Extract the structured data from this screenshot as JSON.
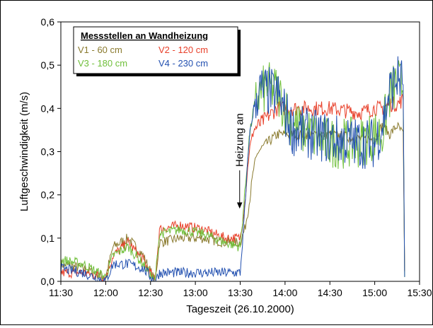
{
  "chart_data": {
    "type": "line",
    "xlabel": "Tageszeit (26.10.2000)",
    "ylabel": "Luftgeschwindigkeit (m/s)",
    "xlim": [
      "11:30",
      "15:30"
    ],
    "ylim": [
      0,
      0.6
    ],
    "x_ticks": [
      "11:30",
      "12:00",
      "12:30",
      "13:00",
      "13:30",
      "14:00",
      "14:30",
      "15:00",
      "15:30"
    ],
    "y_ticks": [
      "0,0",
      "0,1",
      "0,2",
      "0,3",
      "0,4",
      "0,5",
      "0,6"
    ],
    "grid": false,
    "legend": {
      "title": "Messstellen an Wandheizung",
      "placement": "top-left",
      "entries": [
        "V1 -  60 cm",
        "V2 - 120 cm",
        "V3 - 180 cm",
        "V4 - 230 cm"
      ]
    },
    "annotation": {
      "text": "Heizung an",
      "x": "13:32",
      "y": 0.18
    },
    "series": [
      {
        "name": "V1 -  60 cm",
        "color": "#8a7a2e",
        "x": [
          "11:30",
          "11:45",
          "12:00",
          "12:05",
          "12:15",
          "12:25",
          "12:33",
          "12:36",
          "12:50",
          "13:05",
          "13:20",
          "13:30",
          "13:33",
          "13:36",
          "13:39",
          "13:42",
          "13:48",
          "13:55",
          "14:05",
          "14:30",
          "14:50",
          "15:00",
          "15:05",
          "15:10",
          "15:15",
          "15:19",
          "15:20"
        ],
        "values": [
          0.04,
          0.03,
          0.01,
          0.08,
          0.1,
          0.06,
          0.0,
          0.09,
          0.1,
          0.1,
          0.09,
          0.09,
          0.12,
          0.18,
          0.26,
          0.3,
          0.32,
          0.34,
          0.34,
          0.34,
          0.33,
          0.33,
          0.36,
          0.34,
          0.36,
          0.34,
          0.02
        ]
      },
      {
        "name": "V2 - 120 cm",
        "color": "#e8402a",
        "x": [
          "11:30",
          "11:45",
          "12:00",
          "12:05",
          "12:15",
          "12:25",
          "12:33",
          "12:36",
          "12:50",
          "13:05",
          "13:20",
          "13:30",
          "13:33",
          "13:36",
          "13:39",
          "13:42",
          "13:48",
          "13:55",
          "14:05",
          "14:30",
          "14:50",
          "15:00",
          "15:05",
          "15:10",
          "15:15",
          "15:19",
          "15:20"
        ],
        "values": [
          0.02,
          0.02,
          0.01,
          0.06,
          0.09,
          0.05,
          0.0,
          0.12,
          0.13,
          0.12,
          0.1,
          0.1,
          0.18,
          0.3,
          0.35,
          0.36,
          0.38,
          0.4,
          0.4,
          0.4,
          0.39,
          0.4,
          0.4,
          0.41,
          0.41,
          0.42,
          0.03
        ]
      },
      {
        "name": "V3 - 180 cm",
        "color": "#6fbf3a",
        "x": [
          "11:30",
          "11:45",
          "12:00",
          "12:05",
          "12:15",
          "12:25",
          "12:33",
          "12:36",
          "12:50",
          "13:05",
          "13:20",
          "13:30",
          "13:33",
          "13:36",
          "13:39",
          "13:42",
          "13:48",
          "13:55",
          "14:05",
          "14:30",
          "14:50",
          "15:00",
          "15:05",
          "15:10",
          "15:15",
          "15:19",
          "15:20"
        ],
        "values": [
          0.05,
          0.04,
          0.01,
          0.06,
          0.08,
          0.04,
          0.0,
          0.11,
          0.12,
          0.11,
          0.09,
          0.08,
          0.2,
          0.33,
          0.4,
          0.43,
          0.45,
          0.44,
          0.36,
          0.32,
          0.32,
          0.34,
          0.34,
          0.43,
          0.46,
          0.45,
          0.02
        ]
      },
      {
        "name": "V4 - 230 cm",
        "color": "#2250b0",
        "x": [
          "11:30",
          "11:45",
          "12:00",
          "12:05",
          "12:15",
          "12:25",
          "12:33",
          "12:36",
          "12:50",
          "13:05",
          "13:20",
          "13:30",
          "13:33",
          "13:36",
          "13:39",
          "13:42",
          "13:48",
          "13:55",
          "14:05",
          "14:30",
          "14:50",
          "15:00",
          "15:05",
          "15:10",
          "15:15",
          "15:19",
          "15:20"
        ],
        "values": [
          0.03,
          0.02,
          0.0,
          0.04,
          0.04,
          0.03,
          0.0,
          0.02,
          0.02,
          0.02,
          0.02,
          0.02,
          0.16,
          0.33,
          0.4,
          0.44,
          0.44,
          0.43,
          0.35,
          0.33,
          0.32,
          0.32,
          0.36,
          0.44,
          0.47,
          0.46,
          0.01
        ]
      }
    ]
  }
}
